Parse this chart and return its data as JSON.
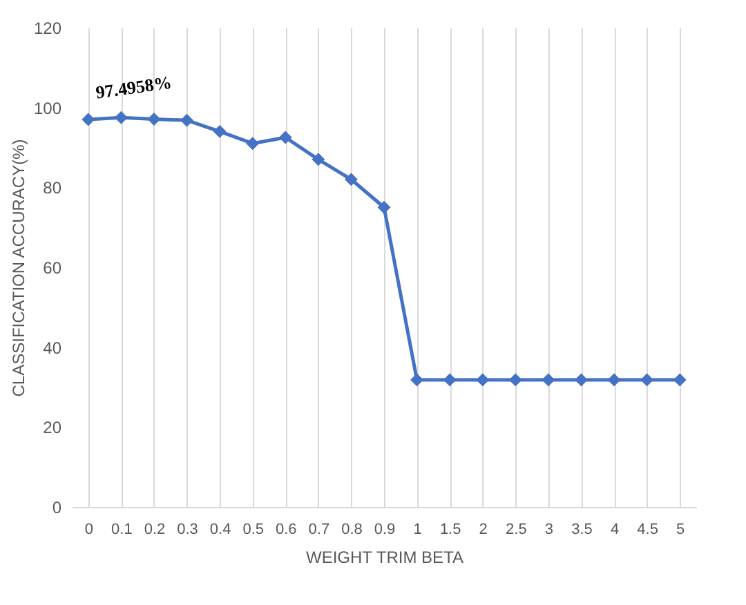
{
  "chart_data": {
    "type": "line",
    "xlabel": "WEIGHT TRIM BETA",
    "ylabel": "CLASSIFICATION ACCURACY(%)",
    "categories": [
      "0",
      "0.1",
      "0.2",
      "0.3",
      "0.4",
      "0.5",
      "0.6",
      "0.7",
      "0.8",
      "0.9",
      "1",
      "1.5",
      "2",
      "2.5",
      "3",
      "3.5",
      "4",
      "4.5",
      "5"
    ],
    "series": [
      {
        "color": "#4472c4",
        "values": [
          97,
          97.4958,
          97.1,
          96.8,
          94,
          91,
          92.5,
          87,
          82,
          75,
          31.8,
          31.8,
          31.8,
          31.8,
          31.8,
          31.8,
          31.8,
          31.8,
          31.8
        ]
      }
    ],
    "ylim": [
      0,
      120
    ],
    "yticks": [
      0,
      20,
      40,
      60,
      80,
      100,
      120
    ],
    "grid": "x",
    "marker": "diamond",
    "line_style": "solid",
    "annotations": [
      {
        "text": "97.4958%",
        "x": "0.1",
        "y": 97.4958
      }
    ]
  }
}
